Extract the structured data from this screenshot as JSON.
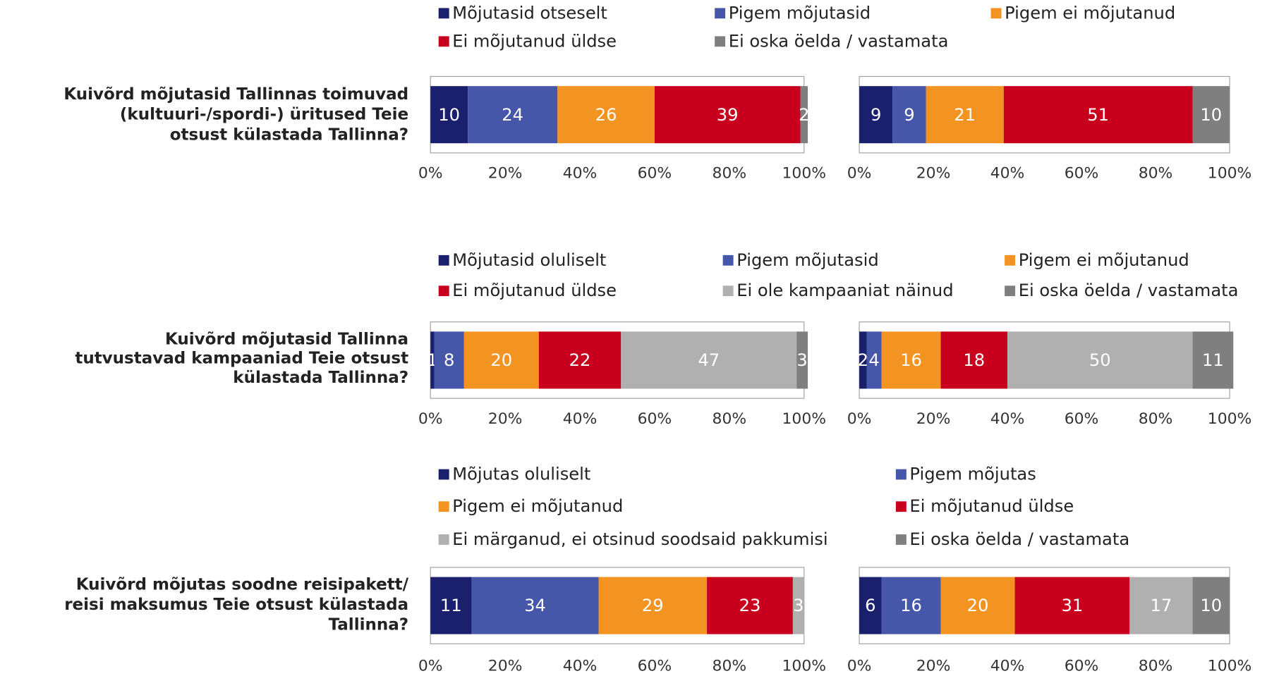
{
  "chart_data": [
    {
      "type": "stacked-bar-h",
      "title": [
        "Kuivõrd mõjutasid Tallinnas toimuvad",
        "(kultuuri-/spordi-) üritused Teie",
        "otsust külastada Tallinna?"
      ],
      "categories": [
        null,
        null
      ],
      "series": [
        {
          "name": "Mõjutasid otseselt",
          "color": "#1a1f6e",
          "values": [
            10,
            9
          ]
        },
        {
          "name": "Pigem mõjutasid",
          "color": "#4656a8",
          "values": [
            24,
            9
          ]
        },
        {
          "name": "Pigem ei mõjutanud",
          "color": "#f39322",
          "values": [
            26,
            21
          ]
        },
        {
          "name": "Ei mõjutanud üldse",
          "color": "#c8001e",
          "values": [
            39,
            51
          ]
        },
        {
          "name": "Ei oska öelda / vastamata",
          "color": "#7f7f7f",
          "values": [
            2,
            10
          ]
        }
      ],
      "xlim": [
        0,
        100
      ],
      "xticks": [
        {
          "value": 0,
          "label": "0%"
        },
        {
          "value": 20,
          "label": "20%"
        },
        {
          "value": 40,
          "label": "40%"
        },
        {
          "value": 60,
          "label": "60%"
        },
        {
          "value": 80,
          "label": "80%"
        },
        {
          "value": 100,
          "label": "100%"
        }
      ]
    },
    {
      "type": "stacked-bar-h",
      "title": [
        "Kuivõrd mõjutasid Tallinna",
        "tutvustavad kampaaniad Teie otsust",
        "külastada Tallinna?"
      ],
      "categories": [
        null,
        null
      ],
      "series": [
        {
          "name": "Mõjutasid oluliselt",
          "color": "#1a1f6e",
          "values": [
            1,
            2
          ]
        },
        {
          "name": "Pigem mõjutasid",
          "color": "#4656a8",
          "values": [
            8,
            4
          ]
        },
        {
          "name": "Pigem ei mõjutanud",
          "color": "#f39322",
          "values": [
            20,
            16
          ]
        },
        {
          "name": "Ei mõjutanud üldse",
          "color": "#c8001e",
          "values": [
            22,
            18
          ]
        },
        {
          "name": "Ei ole kampaaniat näinud",
          "color": "#b0b0b0",
          "values": [
            47,
            50
          ]
        },
        {
          "name": "Ei oska öelda / vastamata",
          "color": "#7f7f7f",
          "values": [
            3,
            11
          ]
        }
      ],
      "xlim": [
        0,
        100
      ],
      "xticks": [
        {
          "value": 0,
          "label": "0%"
        },
        {
          "value": 20,
          "label": "20%"
        },
        {
          "value": 40,
          "label": "40%"
        },
        {
          "value": 60,
          "label": "60%"
        },
        {
          "value": 80,
          "label": "80%"
        },
        {
          "value": 100,
          "label": "100%"
        }
      ]
    },
    {
      "type": "stacked-bar-h",
      "title": [
        "Kuivõrd mõjutas soodne reisipakett/",
        "reisi maksumus Teie otsust külastada",
        "Tallinna?"
      ],
      "categories": [
        null,
        null
      ],
      "series": [
        {
          "name": "Mõjutas oluliselt",
          "color": "#1a1f6e",
          "values": [
            11,
            6
          ]
        },
        {
          "name": "Pigem mõjutas",
          "color": "#4656a8",
          "values": [
            34,
            16
          ]
        },
        {
          "name": "Pigem ei mõjutanud",
          "color": "#f39322",
          "values": [
            29,
            20
          ]
        },
        {
          "name": "Ei mõjutanud üldse",
          "color": "#c8001e",
          "values": [
            23,
            31
          ]
        },
        {
          "name": "Ei märganud, ei otsinud soodsaid pakkumisi",
          "color": "#b0b0b0",
          "values": [
            3,
            17
          ]
        },
        {
          "name": "Ei oska öelda / vastamata",
          "color": "#7f7f7f",
          "values": [
            null,
            10
          ]
        }
      ],
      "xlim": [
        0,
        100
      ],
      "xticks": [
        {
          "value": 0,
          "label": "0%"
        },
        {
          "value": 20,
          "label": "20%"
        },
        {
          "value": 40,
          "label": "40%"
        },
        {
          "value": 60,
          "label": "60%"
        },
        {
          "value": 80,
          "label": "80%"
        },
        {
          "value": 100,
          "label": "100%"
        }
      ]
    }
  ]
}
